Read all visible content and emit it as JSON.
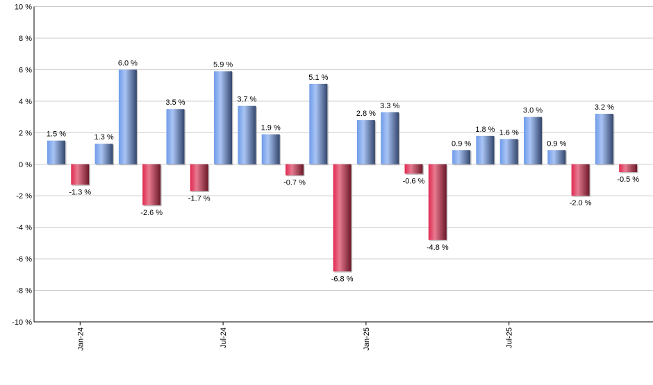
{
  "chart_data": {
    "type": "bar",
    "values": [
      1.5,
      -1.3,
      1.3,
      6.0,
      -2.6,
      3.5,
      -1.7,
      5.9,
      3.7,
      1.9,
      -0.7,
      5.1,
      -6.8,
      2.8,
      3.3,
      -0.6,
      -4.8,
      0.9,
      1.8,
      1.6,
      3.0,
      0.9,
      -2.0,
      3.2,
      -0.5
    ],
    "value_suffix": " %",
    "x_ticks": [
      {
        "label": "Jan-24",
        "index": 1
      },
      {
        "label": "Jul-24",
        "index": 7
      },
      {
        "label": "Jan-25",
        "index": 13
      },
      {
        "label": "Jul-25",
        "index": 19
      }
    ],
    "y_ticks": [
      "10 %",
      "8 %",
      "6 %",
      "4 %",
      "2 %",
      "0 %",
      "-2 %",
      "-4 %",
      "-6 %",
      "-8 %",
      "-10 %"
    ],
    "ylim": [
      -10,
      10
    ],
    "grid": true,
    "title": "",
    "xlabel": "",
    "ylabel": "",
    "colors": {
      "positive": "#6f9be8",
      "positive_dark": "#34486e",
      "negative": "#e0284f",
      "negative_dark": "#6b1a2a",
      "grid": "#c8c8c8"
    }
  }
}
